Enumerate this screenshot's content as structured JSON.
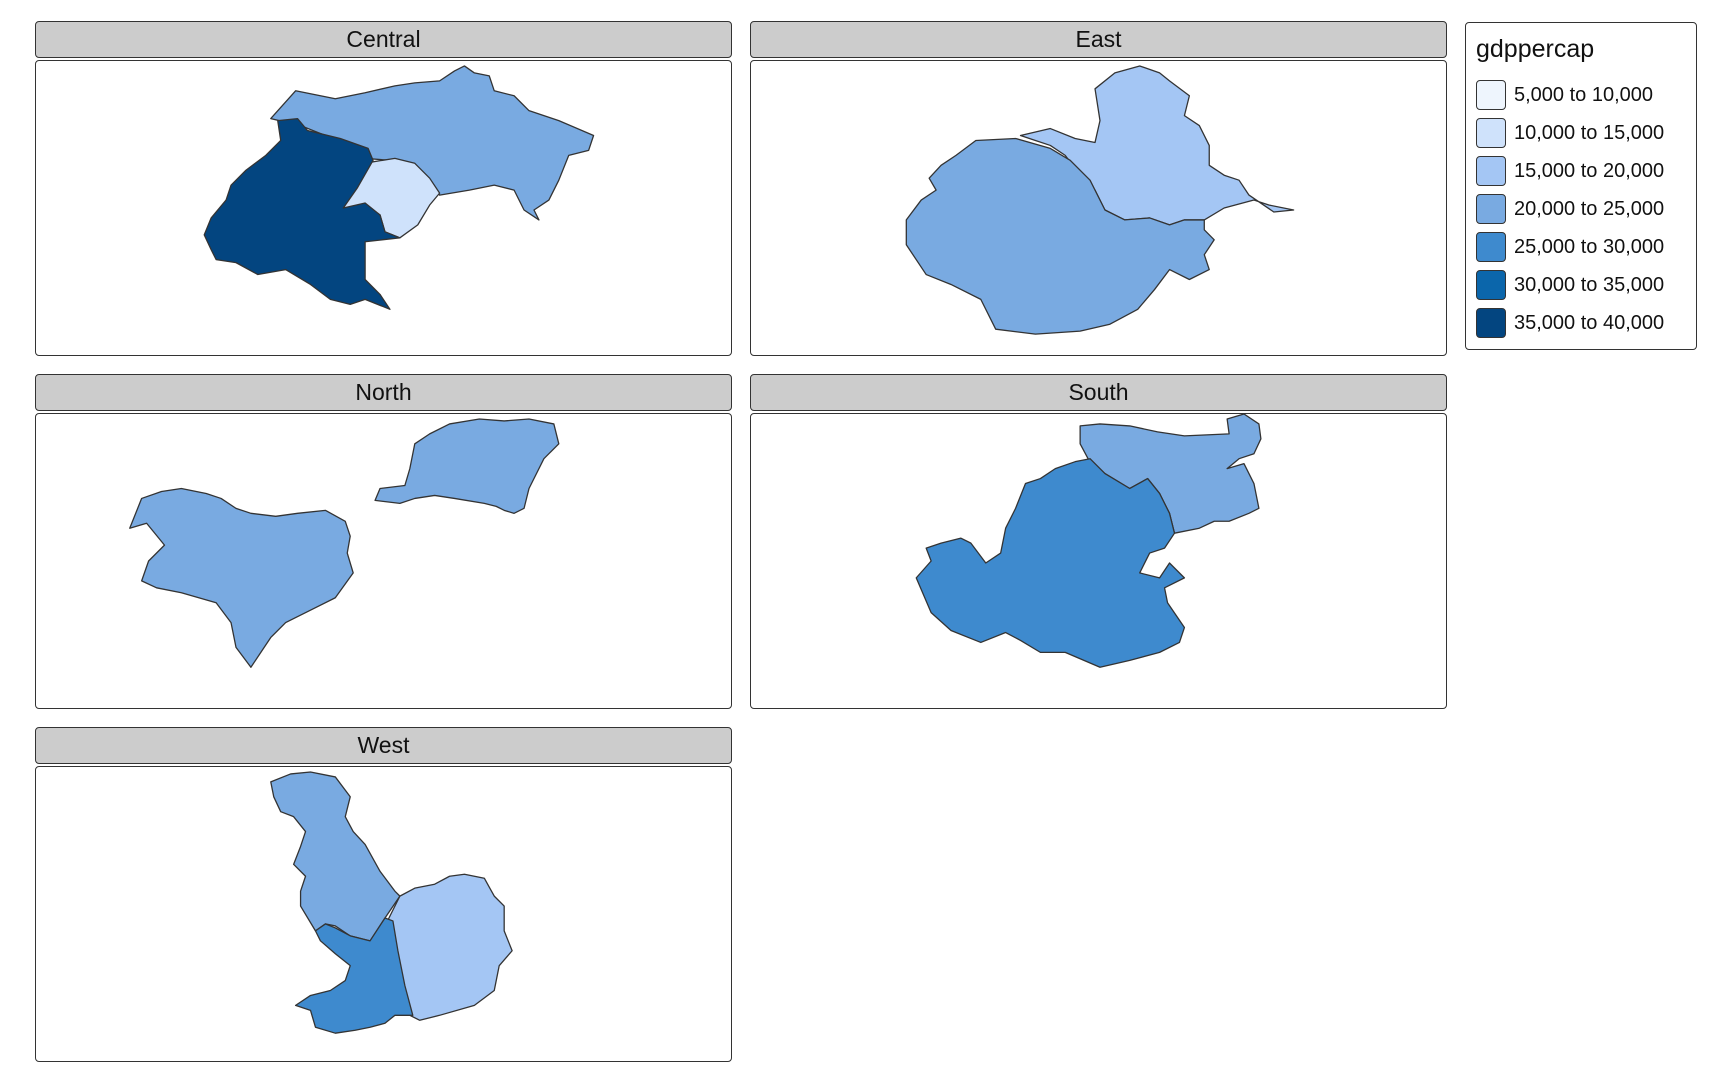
{
  "map": {
    "legend": {
      "title": "gdppercap",
      "classes": [
        {
          "label": "5,000 to 10,000",
          "color": "#eef5fd"
        },
        {
          "label": "10,000 to 15,000",
          "color": "#cfe2fb"
        },
        {
          "label": "15,000 to 20,000",
          "color": "#a4c6f4"
        },
        {
          "label": "20,000 to 25,000",
          "color": "#79aae1"
        },
        {
          "label": "25,000 to 30,000",
          "color": "#3e8ace"
        },
        {
          "label": "30,000 to 35,000",
          "color": "#0b66ab"
        },
        {
          "label": "35,000 to 40,000",
          "color": "#034580"
        }
      ]
    },
    "panels": [
      {
        "title": "Central",
        "regions": [
          {
            "name": "",
            "class": "20,000 to 25,000",
            "color": "#79aae1"
          },
          {
            "name": "",
            "class": "10,000 to 15,000",
            "color": "#cfe2fb"
          },
          {
            "name": "",
            "class": "35,000 to 40,000",
            "color": "#034580"
          }
        ]
      },
      {
        "title": "East",
        "regions": [
          {
            "name": "",
            "class": "15,000 to 20,000",
            "color": "#a4c6f4"
          },
          {
            "name": "",
            "class": "20,000 to 25,000",
            "color": "#79aae1"
          }
        ]
      },
      {
        "title": "North",
        "regions": [
          {
            "name": "",
            "class": "20,000 to 25,000",
            "color": "#79aae1"
          },
          {
            "name": "",
            "class": "20,000 to 25,000",
            "color": "#79aae1"
          }
        ]
      },
      {
        "title": "South",
        "regions": [
          {
            "name": "",
            "class": "20,000 to 25,000",
            "color": "#79aae1"
          },
          {
            "name": "",
            "class": "25,000 to 30,000",
            "color": "#3e8ace"
          }
        ]
      },
      {
        "title": "West",
        "regions": [
          {
            "name": "",
            "class": "20,000 to 25,000",
            "color": "#79aae1"
          },
          {
            "name": "",
            "class": "15,000 to 20,000",
            "color": "#a4c6f4"
          },
          {
            "name": "",
            "class": "25,000 to 30,000",
            "color": "#3e8ace"
          }
        ]
      }
    ]
  }
}
